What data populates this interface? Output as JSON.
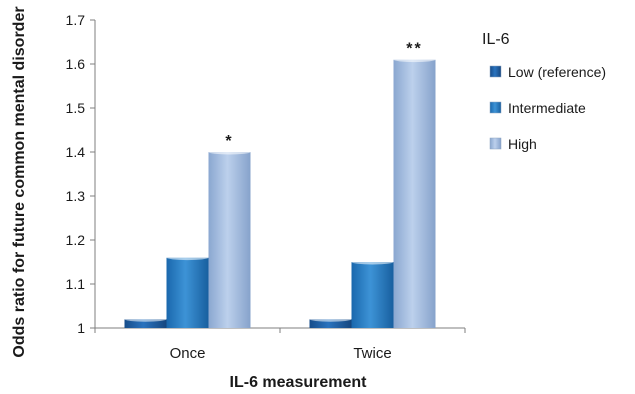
{
  "chart_data": {
    "type": "bar",
    "title": "",
    "xlabel": "IL-6 measurement",
    "ylabel": "Odds ratio for future common mental disorder",
    "ylim": [
      1,
      1.7
    ],
    "yticks": [
      "1",
      "1.1",
      "1.2",
      "1.3",
      "1.4",
      "1.5",
      "1.6",
      "1.7"
    ],
    "categories": [
      "Once",
      "Twice"
    ],
    "legend_title": "IL-6",
    "legend_position": "right",
    "grid": false,
    "series": [
      {
        "name": "Low (reference)",
        "values": [
          1.02,
          1.02
        ],
        "color": "#1f5fa8"
      },
      {
        "name": "Intermediate",
        "values": [
          1.16,
          1.15
        ],
        "color": "#2179c4"
      },
      {
        "name": "High",
        "values": [
          1.4,
          1.61
        ],
        "color": "#9db8de"
      }
    ],
    "annotations": [
      {
        "category": "Once",
        "series": "High",
        "text": "*"
      },
      {
        "category": "Twice",
        "series": "High",
        "text": "**"
      }
    ]
  }
}
